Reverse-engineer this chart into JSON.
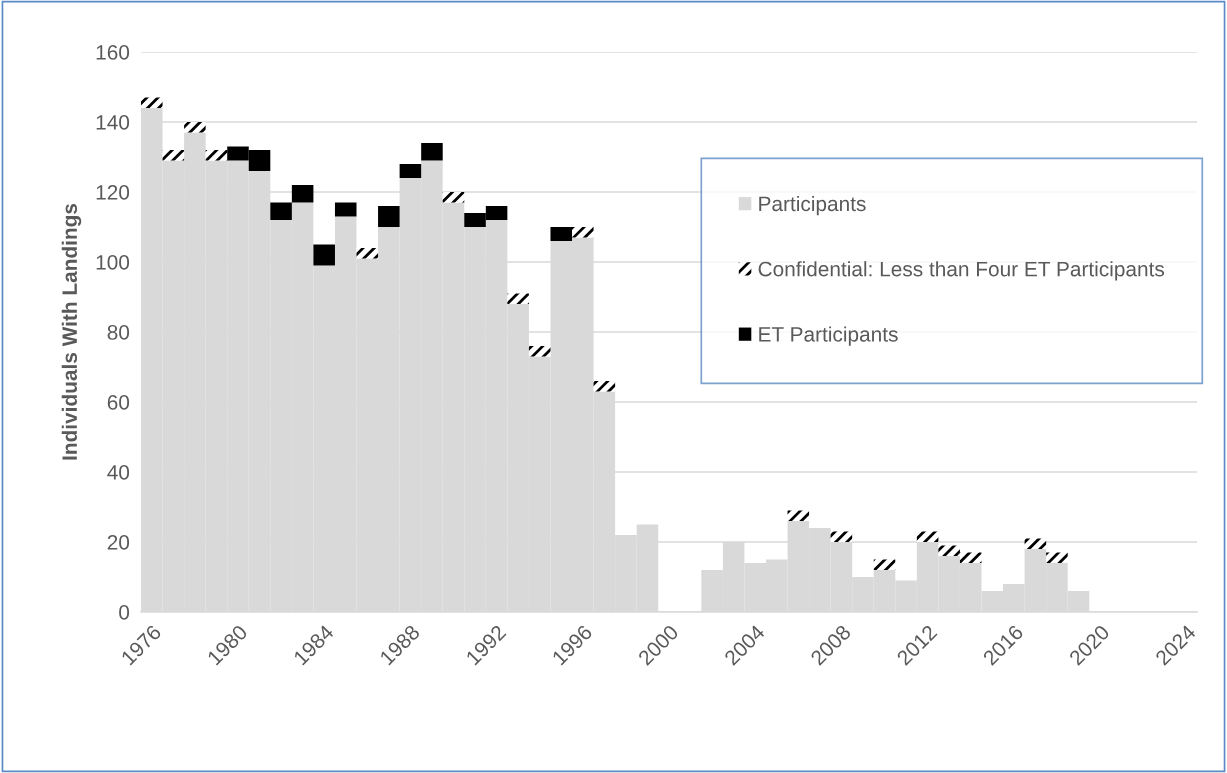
{
  "chart_data": {
    "type": "bar",
    "stacked": true,
    "ylabel": "Individuals With Landings",
    "categories": [
      "1976",
      null,
      null,
      null,
      "1980",
      null,
      null,
      null,
      "1984",
      null,
      null,
      null,
      "1988",
      null,
      null,
      null,
      "1992",
      null,
      null,
      null,
      "1996",
      null,
      null,
      null,
      "2000",
      null,
      null,
      null,
      "2004",
      null,
      null,
      null,
      "2008",
      null,
      null,
      null,
      "2012",
      null,
      null,
      null,
      "2016",
      null,
      null,
      null,
      "2020",
      null,
      null,
      null,
      "2024"
    ],
    "series": [
      {
        "name": "Participants",
        "color": "#d9d9d9",
        "values": [
          144,
          129,
          137,
          129,
          129,
          126,
          112,
          117,
          99,
          113,
          101,
          110,
          124,
          129,
          117,
          110,
          112,
          88,
          73,
          106,
          107,
          63,
          22,
          25,
          0,
          0,
          12,
          20,
          14,
          15,
          26,
          24,
          20,
          10,
          12,
          9,
          20,
          16,
          14,
          6,
          8,
          18,
          14,
          6,
          0,
          0,
          0,
          0,
          0
        ]
      },
      {
        "name": "Confidential: Less than Four ET Participants",
        "color": "#000000",
        "values": [
          3,
          3,
          3,
          3,
          0,
          0,
          0,
          0,
          0,
          0,
          3,
          0,
          0,
          0,
          3,
          0,
          0,
          3,
          3,
          0,
          3,
          3,
          0,
          0,
          0,
          0,
          0,
          0,
          0,
          0,
          3,
          0,
          3,
          0,
          3,
          0,
          3,
          3,
          3,
          0,
          0,
          3,
          3,
          0,
          0,
          0,
          0,
          0,
          0
        ]
      },
      {
        "name": "ET Participants",
        "color": "#000000",
        "values": [
          0,
          0,
          0,
          0,
          4,
          6,
          5,
          5,
          6,
          4,
          0,
          6,
          4,
          5,
          0,
          4,
          4,
          0,
          0,
          4,
          0,
          0,
          0,
          0,
          0,
          0,
          0,
          0,
          0,
          0,
          0,
          0,
          0,
          0,
          0,
          0,
          0,
          0,
          0,
          0,
          0,
          0,
          0,
          0,
          0,
          0,
          0,
          0,
          0
        ]
      }
    ],
    "ylim": [
      0,
      160
    ],
    "yticks": [
      0,
      20,
      40,
      60,
      80,
      100,
      120,
      140,
      160
    ],
    "grid": "y",
    "legend": "right"
  }
}
